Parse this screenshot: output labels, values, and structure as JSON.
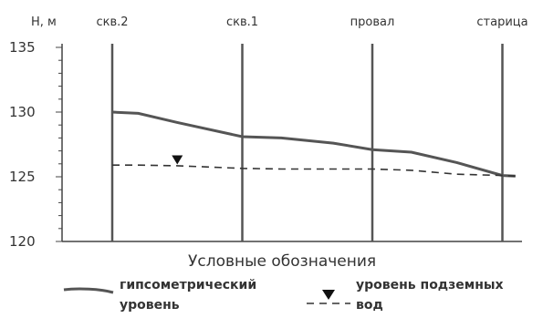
{
  "axis": {
    "ylabel": "Н, м",
    "yticks": [
      "135",
      "130",
      "125",
      "120"
    ],
    "ylim": [
      120,
      135
    ]
  },
  "wells": [
    {
      "label": "скв.2",
      "x": 0
    },
    {
      "label": "скв.1",
      "x": 1
    },
    {
      "label": "провал",
      "x": 2
    },
    {
      "label": "старица",
      "x": 3
    }
  ],
  "chart_data": {
    "type": "line",
    "x": [
      0,
      0.2,
      0.5,
      1,
      1.3,
      1.7,
      2,
      2.3,
      2.65,
      3,
      3.1
    ],
    "series": [
      {
        "name": "гипсометрический уровень",
        "values": [
          130,
          129.9,
          129.2,
          128.1,
          128,
          127.6,
          127.1,
          126.9,
          126.1,
          125.1,
          125.05
        ]
      },
      {
        "name": "уровень подземных вод",
        "values": [
          125.9,
          125.9,
          125.85,
          125.65,
          125.6,
          125.6,
          125.6,
          125.5,
          125.2,
          125.1,
          125.05
        ]
      }
    ],
    "marker": {
      "x": 0.5,
      "y": 126.3,
      "symbol": "inverted-triangle"
    }
  },
  "legend": {
    "title": "Условные обозначения",
    "items": [
      {
        "line1": "гипсометрический",
        "line2": "уровень"
      },
      {
        "line1": "уровень подземных",
        "line2": "вод"
      }
    ]
  }
}
